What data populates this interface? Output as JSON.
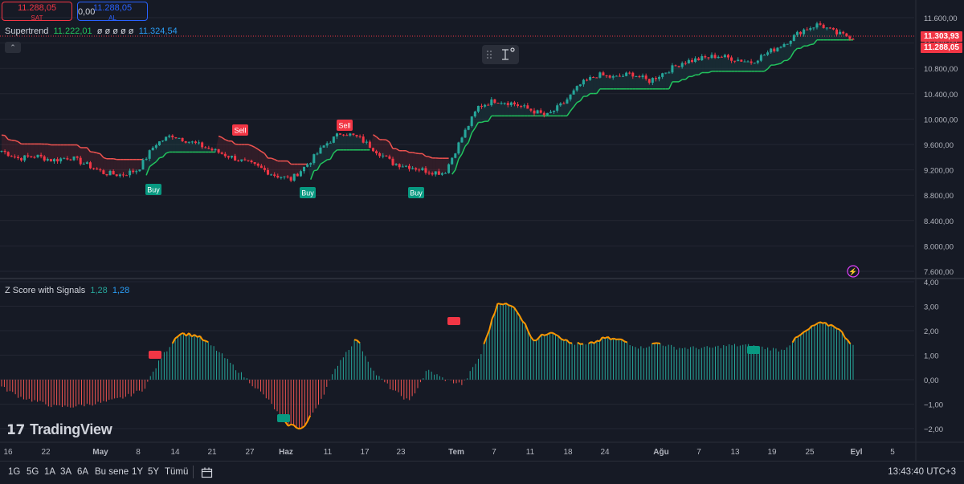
{
  "header": {
    "sell_price": "11.288,05",
    "sell_label": "SAT",
    "spread": "0,00",
    "buy_price": "11.288,05",
    "buy_label": "AL"
  },
  "legends": {
    "supertrend": {
      "name": "Supertrend",
      "v1": "11.222,01",
      "v2": "ø ø ø ø ø",
      "v3": "11.324,54"
    },
    "zscore": {
      "name": "Z Score with Signals",
      "v1": "1,28",
      "v2": "1,28"
    }
  },
  "price_axis": {
    "ticks": [
      "11.600,00",
      "11.200,00",
      "10.800,00",
      "10.400,00",
      "10.000,00",
      "9.600,00",
      "9.200,00",
      "8.800,00",
      "8.400,00",
      "8.000,00",
      "7.600,00"
    ],
    "tag_upper": "11.303,93",
    "tag_lower": "11.288,05"
  },
  "osc_axis": {
    "ticks": [
      "4,00",
      "3,00",
      "2,00",
      "1,00",
      "0,00",
      "−1,00",
      "−2,00"
    ]
  },
  "time_axis": {
    "labels": [
      "16",
      "22",
      "May",
      "8",
      "14",
      "21",
      "27",
      "Haz",
      "11",
      "17",
      "23",
      "Tem",
      "7",
      "11",
      "18",
      "24",
      "Ağu",
      "7",
      "13",
      "19",
      "25",
      "Eyl",
      "5"
    ]
  },
  "signals": {
    "buy": "Buy",
    "sell": "Sell"
  },
  "branding": {
    "logo_text": "TradingView"
  },
  "bottom_bar": {
    "ranges": [
      "1G",
      "5G",
      "1A",
      "3A",
      "6A",
      "Bu sene",
      "1Y",
      "5Y",
      "Tümü"
    ],
    "clock": "13:43:40 UTC+3"
  },
  "colors": {
    "up": "#26a69a",
    "down": "#f23645",
    "supertrend_up": "#22c55e",
    "supertrend_down": "#ef5350",
    "osc_pos": "#26a69a",
    "osc_neg": "#ef5350",
    "osc_line": "#ff9800",
    "background": "#161a25"
  },
  "icons": [
    "drag-handle-icon",
    "measure-tool-icon",
    "date-range-icon",
    "lightning-icon",
    "chevron-up-icon",
    "tradingview-logo-icon"
  ],
  "chart_data": [
    {
      "type": "candlestick",
      "title": "Supertrend",
      "ylim": [
        7600,
        11600
      ],
      "close_approx": [
        9500,
        9380,
        9420,
        9350,
        9400,
        9280,
        9150,
        9120,
        9200,
        9600,
        9750,
        9650,
        9550,
        9450,
        9350,
        9250,
        9120,
        9050,
        9300,
        9600,
        9800,
        9700,
        9500,
        9300,
        9250,
        9180,
        9150,
        9700,
        10200,
        10300,
        10250,
        10150,
        10050,
        10250,
        10550,
        10700,
        10650,
        10720,
        10600,
        10750,
        10900,
        10950,
        11000,
        10950,
        10900,
        11050,
        11200,
        11400,
        11500,
        11350,
        11288
      ],
      "buy_signals": 3,
      "sell_signals": 2
    },
    {
      "type": "bar",
      "title": "Z Score with Signals",
      "ylim": [
        -2.3,
        4
      ],
      "values_approx": [
        -0.3,
        -0.7,
        -0.9,
        -1.1,
        -1.1,
        -1.0,
        -0.9,
        -0.7,
        -0.4,
        0.9,
        1.9,
        1.8,
        1.3,
        0.6,
        -0.1,
        -0.8,
        -1.8,
        -2.0,
        -0.8,
        0.7,
        1.7,
        0.3,
        -0.4,
        -0.9,
        0.4,
        0.0,
        -0.2,
        1.0,
        3.2,
        2.9,
        1.6,
        2.0,
        1.5,
        1.4,
        1.7,
        1.6,
        1.3,
        1.5,
        1.3,
        1.3,
        1.3,
        1.4,
        1.4,
        1.3,
        1.2,
        1.8,
        2.3,
        2.2,
        1.4
      ],
      "last_value": 1.28
    }
  ]
}
